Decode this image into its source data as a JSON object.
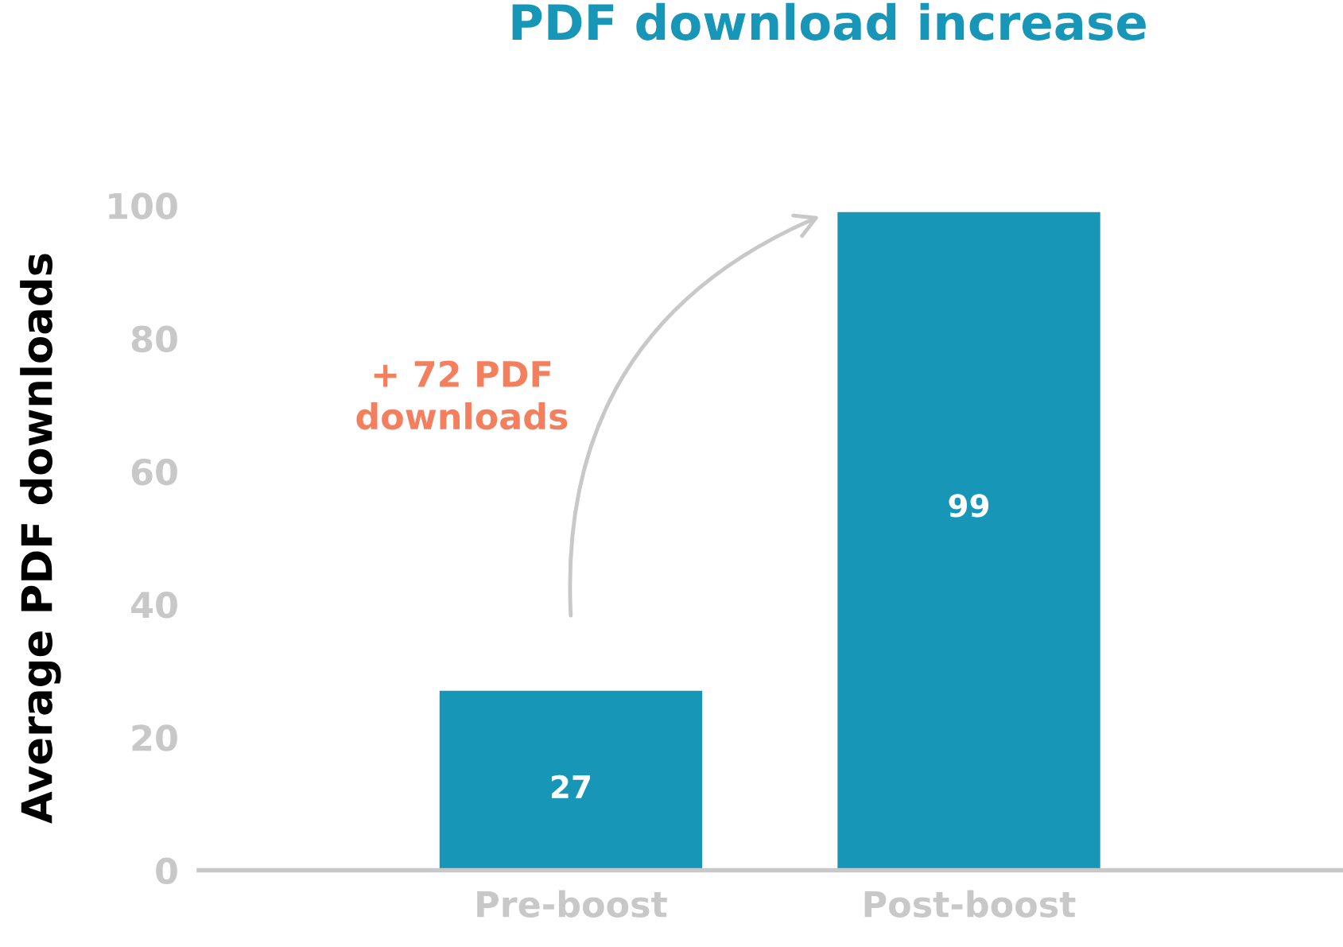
{
  "chart_data": {
    "type": "bar",
    "title": "PDF download increase",
    "ylabel": "Average PDF downloads",
    "categories": [
      "Pre-boost",
      "Post-boost"
    ],
    "values": [
      27,
      99
    ],
    "color": "#1896b8",
    "ylim": [
      0,
      100
    ],
    "yticks": [
      0,
      20,
      40,
      60,
      80,
      100
    ],
    "grid": false,
    "data_labels": true,
    "annotations": [
      "+ 72 PDF\ndownloads"
    ]
  }
}
